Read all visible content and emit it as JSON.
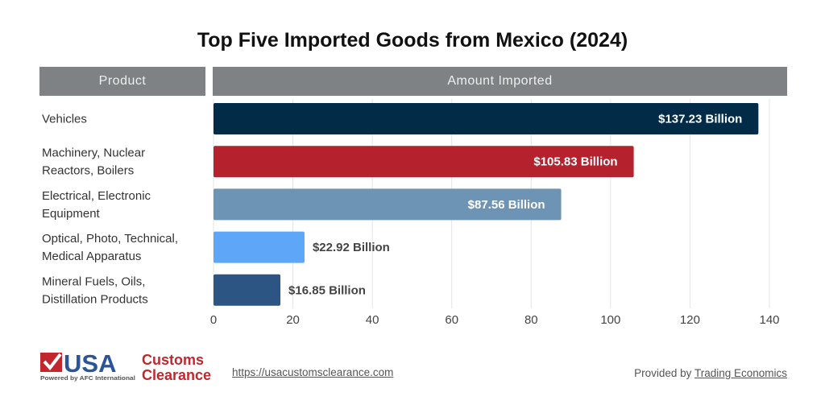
{
  "chart_data": {
    "type": "bar",
    "orientation": "horizontal",
    "title": "Top Five Imported Goods from Mexico (2024)",
    "column_headers": [
      "Product",
      "Amount Imported"
    ],
    "categories": [
      [
        "Vehicles"
      ],
      [
        "Machinery, Nuclear",
        "Reactors, Boilers"
      ],
      [
        "Electrical, Electronic",
        "Equipment"
      ],
      [
        "Optical, Photo, Technical,",
        "Medical Apparatus"
      ],
      [
        "Mineral Fuels, Oils,",
        "Distillation Products"
      ]
    ],
    "values": [
      137.23,
      105.83,
      87.56,
      22.92,
      16.85
    ],
    "data_labels": [
      "$137.23 Billion",
      "$105.83 Billion",
      "$87.56 Billion",
      "$22.92 Billion",
      "$16.85 Billion"
    ],
    "colors": [
      "#022b47",
      "#b5222d",
      "#6d93b5",
      "#5ea6f7",
      "#2d5583"
    ],
    "xlim": [
      0,
      140
    ],
    "xticks": [
      0,
      20,
      40,
      60,
      80,
      100,
      120,
      140
    ],
    "grid": true,
    "legend": "none"
  },
  "footer": {
    "logo_text": [
      "USA",
      "Customs",
      "Clearance",
      "Powered by AFC International"
    ],
    "url": "https://usacustomsclearance.com",
    "provided_prefix": "Provided by ",
    "provided_link": "Trading Economics"
  }
}
